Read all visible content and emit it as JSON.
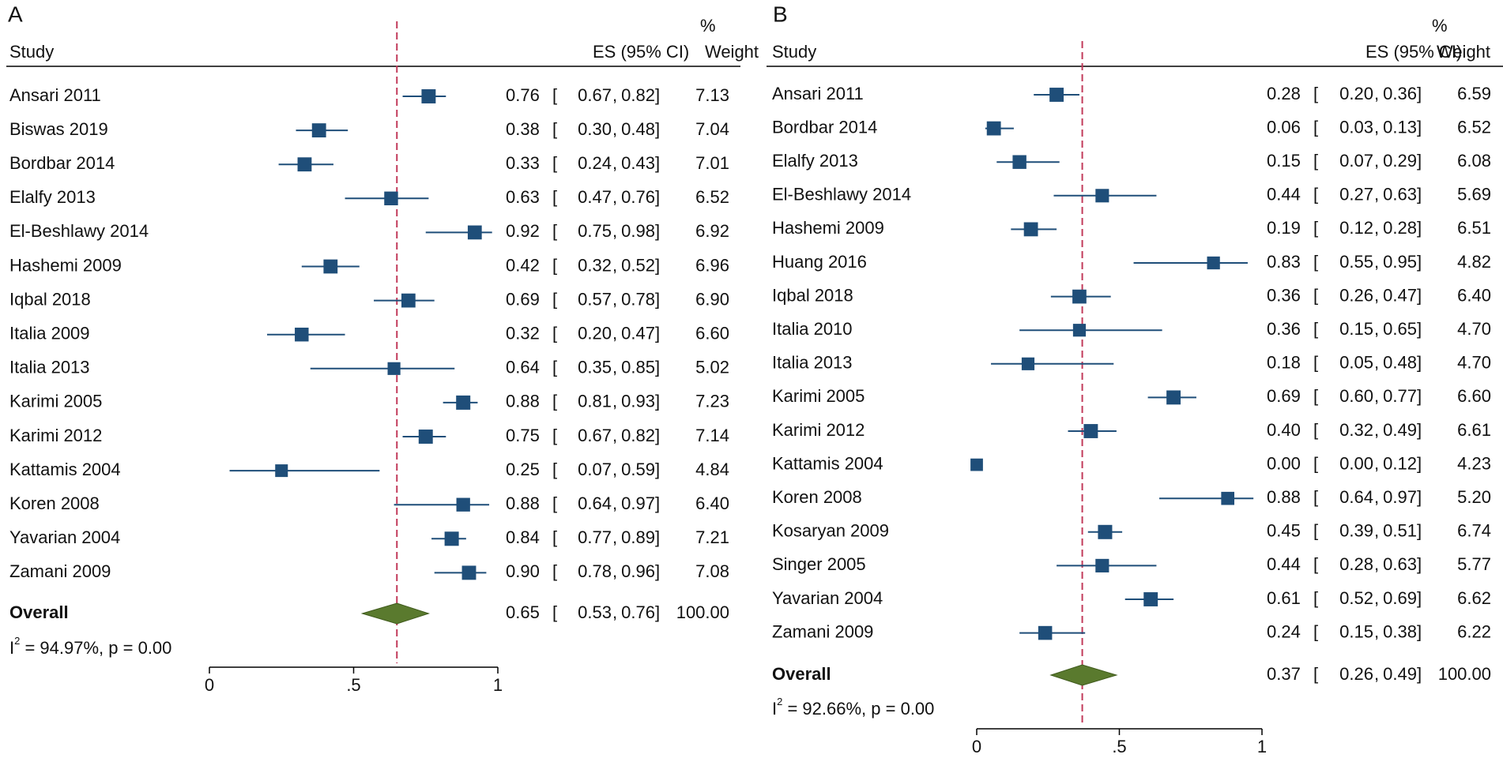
{
  "colors": {
    "marker": "#1f4e79",
    "ci_line": "#1f4e79",
    "diamond": "#5a7a2e",
    "diamond_stroke": "#3f5a1c",
    "ref_line": "#c23a5a",
    "text": "#111111",
    "rule": "#000000"
  },
  "chart_data": [
    {
      "type": "forest",
      "panel_label": "A",
      "headers": {
        "study": "Study",
        "es": "ES (95% CI)",
        "weight_top": "%",
        "weight_bottom": "Weight"
      },
      "xlim": [
        0,
        1
      ],
      "ticks": [
        {
          "value": 0,
          "label": "0"
        },
        {
          "value": 0.5,
          "label": ".5"
        },
        {
          "value": 1,
          "label": "1"
        }
      ],
      "studies": [
        {
          "name": "Ansari 2011",
          "es": 0.76,
          "lo": 0.67,
          "hi": 0.82,
          "es_text": "0.76",
          "lo_text": "0.67",
          "hi_text": "0.82",
          "weight": "7.13",
          "weight_value": 7.13
        },
        {
          "name": "Biswas 2019",
          "es": 0.38,
          "lo": 0.3,
          "hi": 0.48,
          "es_text": "0.38",
          "lo_text": "0.30",
          "hi_text": "0.48",
          "weight": "7.04",
          "weight_value": 7.04
        },
        {
          "name": "Bordbar 2014",
          "es": 0.33,
          "lo": 0.24,
          "hi": 0.43,
          "es_text": "0.33",
          "lo_text": "0.24",
          "hi_text": "0.43",
          "weight": "7.01",
          "weight_value": 7.01
        },
        {
          "name": "Elalfy 2013",
          "es": 0.63,
          "lo": 0.47,
          "hi": 0.76,
          "es_text": "0.63",
          "lo_text": "0.47",
          "hi_text": "0.76",
          "weight": "6.52",
          "weight_value": 6.52
        },
        {
          "name": "El-Beshlawy 2014",
          "es": 0.92,
          "lo": 0.75,
          "hi": 0.98,
          "es_text": "0.92",
          "lo_text": "0.75",
          "hi_text": "0.98",
          "weight": "6.92",
          "weight_value": 6.92
        },
        {
          "name": "Hashemi 2009",
          "es": 0.42,
          "lo": 0.32,
          "hi": 0.52,
          "es_text": "0.42",
          "lo_text": "0.32",
          "hi_text": "0.52",
          "weight": "6.96",
          "weight_value": 6.96
        },
        {
          "name": "Iqbal 2018",
          "es": 0.69,
          "lo": 0.57,
          "hi": 0.78,
          "es_text": "0.69",
          "lo_text": "0.57",
          "hi_text": "0.78",
          "weight": "6.90",
          "weight_value": 6.9
        },
        {
          "name": "Italia 2009",
          "es": 0.32,
          "lo": 0.2,
          "hi": 0.47,
          "es_text": "0.32",
          "lo_text": "0.20",
          "hi_text": "0.47",
          "weight": "6.60",
          "weight_value": 6.6
        },
        {
          "name": "Italia 2013",
          "es": 0.64,
          "lo": 0.35,
          "hi": 0.85,
          "es_text": "0.64",
          "lo_text": "0.35",
          "hi_text": "0.85",
          "weight": "5.02",
          "weight_value": 5.02
        },
        {
          "name": "Karimi 2005",
          "es": 0.88,
          "lo": 0.81,
          "hi": 0.93,
          "es_text": "0.88",
          "lo_text": "0.81",
          "hi_text": "0.93",
          "weight": "7.23",
          "weight_value": 7.23
        },
        {
          "name": "Karimi 2012",
          "es": 0.75,
          "lo": 0.67,
          "hi": 0.82,
          "es_text": "0.75",
          "lo_text": "0.67",
          "hi_text": "0.82",
          "weight": "7.14",
          "weight_value": 7.14
        },
        {
          "name": "Kattamis 2004",
          "es": 0.25,
          "lo": 0.07,
          "hi": 0.59,
          "es_text": "0.25",
          "lo_text": "0.07",
          "hi_text": "0.59",
          "weight": "4.84",
          "weight_value": 4.84
        },
        {
          "name": "Koren 2008",
          "es": 0.88,
          "lo": 0.64,
          "hi": 0.97,
          "es_text": "0.88",
          "lo_text": "0.64",
          "hi_text": "0.97",
          "weight": "6.40",
          "weight_value": 6.4
        },
        {
          "name": "Yavarian 2004",
          "es": 0.84,
          "lo": 0.77,
          "hi": 0.89,
          "es_text": "0.84",
          "lo_text": "0.77",
          "hi_text": "0.89",
          "weight": "7.21",
          "weight_value": 7.21
        },
        {
          "name": "Zamani 2009",
          "es": 0.9,
          "lo": 0.78,
          "hi": 0.96,
          "es_text": "0.90",
          "lo_text": "0.78",
          "hi_text": "0.96",
          "weight": "7.08",
          "weight_value": 7.08
        }
      ],
      "overall": {
        "name": "Overall",
        "es": 0.65,
        "lo": 0.53,
        "hi": 0.76,
        "es_text": "0.65",
        "lo_text": "0.53",
        "hi_text": "0.76",
        "weight": "100.00"
      },
      "heterogeneity": {
        "prefix": "I",
        "sup": "2",
        "text": " = 94.97%, p = 0.00"
      }
    },
    {
      "type": "forest",
      "panel_label": "B",
      "headers": {
        "study": "Study",
        "es": "ES (95% CI)",
        "weight_top": "%",
        "weight_bottom": "Weight"
      },
      "xlim": [
        0,
        1
      ],
      "ticks": [
        {
          "value": 0,
          "label": "0"
        },
        {
          "value": 0.5,
          "label": ".5"
        },
        {
          "value": 1,
          "label": "1"
        }
      ],
      "studies": [
        {
          "name": "Ansari 2011",
          "es": 0.28,
          "lo": 0.2,
          "hi": 0.36,
          "es_text": "0.28",
          "lo_text": "0.20",
          "hi_text": "0.36",
          "weight": "6.59",
          "weight_value": 6.59
        },
        {
          "name": "Bordbar 2014",
          "es": 0.06,
          "lo": 0.03,
          "hi": 0.13,
          "es_text": "0.06",
          "lo_text": "0.03",
          "hi_text": "0.13",
          "weight": "6.52",
          "weight_value": 6.52
        },
        {
          "name": "Elalfy 2013",
          "es": 0.15,
          "lo": 0.07,
          "hi": 0.29,
          "es_text": "0.15",
          "lo_text": "0.07",
          "hi_text": "0.29",
          "weight": "6.08",
          "weight_value": 6.08
        },
        {
          "name": "El-Beshlawy 2014",
          "es": 0.44,
          "lo": 0.27,
          "hi": 0.63,
          "es_text": "0.44",
          "lo_text": "0.27",
          "hi_text": "0.63",
          "weight": "5.69",
          "weight_value": 5.69
        },
        {
          "name": "Hashemi 2009",
          "es": 0.19,
          "lo": 0.12,
          "hi": 0.28,
          "es_text": "0.19",
          "lo_text": "0.12",
          "hi_text": "0.28",
          "weight": "6.51",
          "weight_value": 6.51
        },
        {
          "name": "Huang 2016",
          "es": 0.83,
          "lo": 0.55,
          "hi": 0.95,
          "es_text": "0.83",
          "lo_text": "0.55",
          "hi_text": "0.95",
          "weight": "4.82",
          "weight_value": 4.82
        },
        {
          "name": "Iqbal 2018",
          "es": 0.36,
          "lo": 0.26,
          "hi": 0.47,
          "es_text": "0.36",
          "lo_text": "0.26",
          "hi_text": "0.47",
          "weight": "6.40",
          "weight_value": 6.4
        },
        {
          "name": "Italia 2010",
          "es": 0.36,
          "lo": 0.15,
          "hi": 0.65,
          "es_text": "0.36",
          "lo_text": "0.15",
          "hi_text": "0.65",
          "weight": "4.70",
          "weight_value": 4.7
        },
        {
          "name": "Italia 2013",
          "es": 0.18,
          "lo": 0.05,
          "hi": 0.48,
          "es_text": "0.18",
          "lo_text": "0.05",
          "hi_text": "0.48",
          "weight": "4.70",
          "weight_value": 4.7
        },
        {
          "name": "Karimi 2005",
          "es": 0.69,
          "lo": 0.6,
          "hi": 0.77,
          "es_text": "0.69",
          "lo_text": "0.60",
          "hi_text": "0.77",
          "weight": "6.60",
          "weight_value": 6.6
        },
        {
          "name": "Karimi 2012",
          "es": 0.4,
          "lo": 0.32,
          "hi": 0.49,
          "es_text": "0.40",
          "lo_text": "0.32",
          "hi_text": "0.49",
          "weight": "6.61",
          "weight_value": 6.61
        },
        {
          "name": "Kattamis 2004",
          "es": 0.0,
          "lo": 0.0,
          "hi": 0.12,
          "es_text": "0.00",
          "lo_text": "0.00",
          "hi_text": "0.12",
          "weight": "4.23",
          "weight_value": 4.23,
          "ci_hidden": true
        },
        {
          "name": "Koren 2008",
          "es": 0.88,
          "lo": 0.64,
          "hi": 0.97,
          "es_text": "0.88",
          "lo_text": "0.64",
          "hi_text": "0.97",
          "weight": "5.20",
          "weight_value": 5.2
        },
        {
          "name": "Kosaryan 2009",
          "es": 0.45,
          "lo": 0.39,
          "hi": 0.51,
          "es_text": "0.45",
          "lo_text": "0.39",
          "hi_text": "0.51",
          "weight": "6.74",
          "weight_value": 6.74
        },
        {
          "name": "Singer 2005",
          "es": 0.44,
          "lo": 0.28,
          "hi": 0.63,
          "es_text": "0.44",
          "lo_text": "0.28",
          "hi_text": "0.63",
          "weight": "5.77",
          "weight_value": 5.77
        },
        {
          "name": "Yavarian 2004",
          "es": 0.61,
          "lo": 0.52,
          "hi": 0.69,
          "es_text": "0.61",
          "lo_text": "0.52",
          "hi_text": "0.69",
          "weight": "6.62",
          "weight_value": 6.62
        },
        {
          "name": "Zamani 2009",
          "es": 0.24,
          "lo": 0.15,
          "hi": 0.38,
          "es_text": "0.24",
          "lo_text": "0.15",
          "hi_text": "0.38",
          "weight": "6.22",
          "weight_value": 6.22
        }
      ],
      "overall": {
        "name": "Overall",
        "es": 0.37,
        "lo": 0.26,
        "hi": 0.49,
        "es_text": "0.37",
        "lo_text": "0.26",
        "hi_text": "0.49",
        "weight": "100.00"
      },
      "heterogeneity": {
        "prefix": "I",
        "sup": "2",
        "text": " = 92.66%, p = 0.00"
      }
    }
  ]
}
